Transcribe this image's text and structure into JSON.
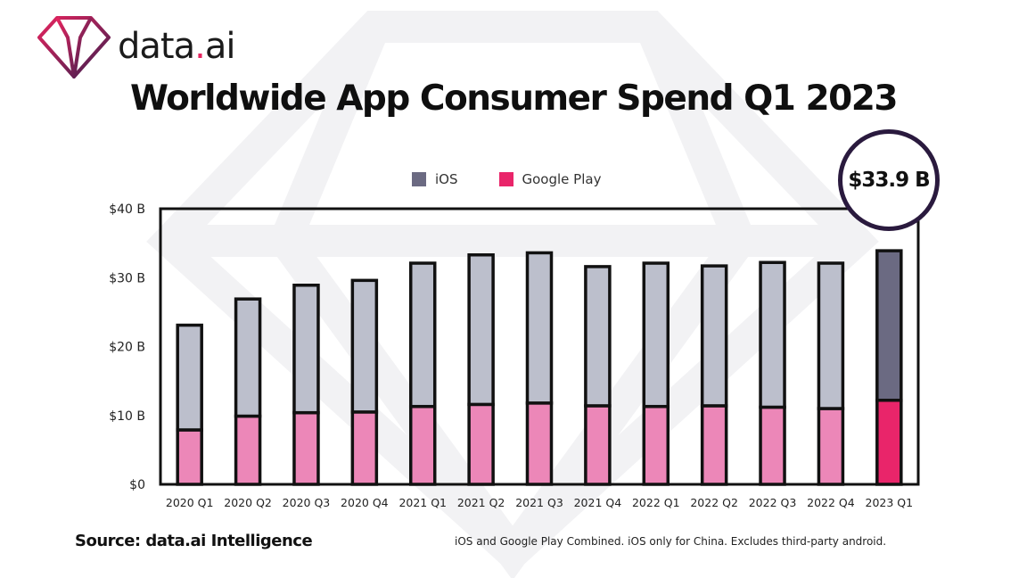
{
  "brand": {
    "name_part1": "data",
    "name_dot": ".",
    "name_part2": "ai"
  },
  "title": "Worldwide App Consumer Spend Q1 2023",
  "callout": "$33.9 B",
  "footer": {
    "source": "Source: data.ai Intelligence",
    "note": "iOS and Google Play Combined. iOS only for China. Excludes third-party android."
  },
  "colors": {
    "ios": "#bcbfcc",
    "google_play": "#ec87b8",
    "ios_highlight": "#6b6a82",
    "google_play_highlight": "#e9256a",
    "outline": "#111111",
    "bar_outline": "#111111"
  },
  "chart_data": {
    "type": "bar",
    "stacked": true,
    "title": "Worldwide App Consumer Spend Q1 2023",
    "categories": [
      "2020 Q1",
      "2020 Q2",
      "2020 Q3",
      "2020 Q4",
      "2021 Q1",
      "2021 Q2",
      "2021 Q3",
      "2021 Q4",
      "2022 Q1",
      "2022 Q2",
      "2022 Q3",
      "2022 Q4",
      "2023 Q1"
    ],
    "series": [
      {
        "name": "iOS",
        "values": [
          15.2,
          17.0,
          18.5,
          19.1,
          20.8,
          21.7,
          21.8,
          20.2,
          20.8,
          20.3,
          21.0,
          21.1,
          21.7
        ]
      },
      {
        "name": "Google Play",
        "values": [
          7.9,
          9.9,
          10.4,
          10.5,
          11.3,
          11.6,
          11.8,
          11.4,
          11.3,
          11.4,
          11.2,
          11.0,
          12.2
        ]
      }
    ],
    "highlight_category": "2023 Q1",
    "yticks": [
      "$0",
      "$10 B",
      "$20 B",
      "$30 B",
      "$40 B"
    ],
    "ylim": [
      0,
      40
    ],
    "legend_position": "top",
    "grid": false
  }
}
